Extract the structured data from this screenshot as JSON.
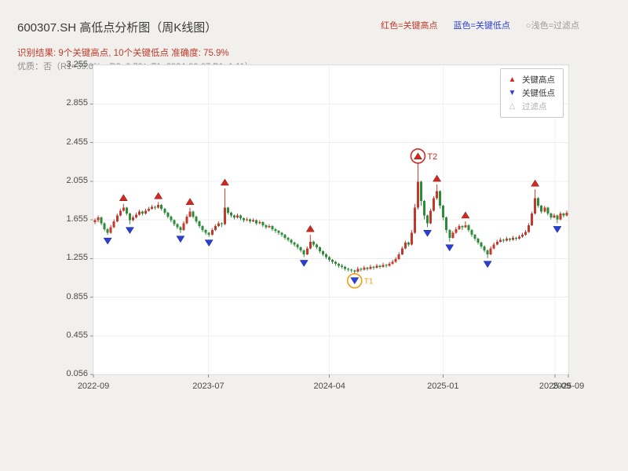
{
  "header": {
    "title": "600307.SH 高低点分析图（周K线图）",
    "result_line": "识别结果: 9个关键高点, 10个关键低点  准确度: 75.9%",
    "quality_line": "优质：否（R1=39.0%，R2=0.72；T1=2024-06-07 P1=1.11）",
    "top_legend": [
      {
        "label": "红色=关键高点",
        "color": "#c0392b"
      },
      {
        "label": "蓝色=关键低点",
        "color": "#2b3fd4"
      },
      {
        "label": "○浅色=过滤点",
        "color": "#9a9a9a"
      }
    ]
  },
  "legend_box": {
    "items": [
      {
        "label": "关键高点",
        "marker": "up-triangle",
        "color": "#d02a20"
      },
      {
        "label": "关键低点",
        "marker": "down-triangle",
        "color": "#2b3fd4"
      },
      {
        "label": "过滤点",
        "marker": "up-triangle-outline",
        "color": "#bbbbbb"
      }
    ]
  },
  "chart_data": {
    "type": "candlestick",
    "symbol": "600307.SH",
    "period": "weekly",
    "title": "600307.SH 高低点分析图（周K线图）",
    "y_range": [
      0.056,
      3.255
    ],
    "y_ticks": [
      3.255,
      2.855,
      2.455,
      2.055,
      1.655,
      1.255,
      0.855,
      0.455,
      0.056
    ],
    "x_ticks": [
      {
        "label": "2022-09",
        "pos": 0.0
      },
      {
        "label": "2023-07",
        "pos": 0.242
      },
      {
        "label": "2024-04",
        "pos": 0.497
      },
      {
        "label": "2025-01",
        "pos": 0.736
      },
      {
        "label": "2025-09",
        "pos": 0.972
      },
      {
        "label": "2025-09",
        "pos": 1.0
      }
    ],
    "grid": true,
    "up_color": "#c0392b",
    "down_color": "#2e8b3a",
    "high_marker_color": "#d02a20",
    "low_marker_color": "#2b3fd4",
    "candles": [
      [
        1.63,
        1.67,
        1.61,
        1.65
      ],
      [
        1.65,
        1.7,
        1.63,
        1.68
      ],
      [
        1.68,
        1.69,
        1.6,
        1.62
      ],
      [
        1.62,
        1.63,
        1.54,
        1.56
      ],
      [
        1.56,
        1.57,
        1.5,
        1.52
      ],
      [
        1.52,
        1.6,
        1.51,
        1.58
      ],
      [
        1.58,
        1.66,
        1.57,
        1.64
      ],
      [
        1.64,
        1.72,
        1.63,
        1.7
      ],
      [
        1.7,
        1.77,
        1.69,
        1.75
      ],
      [
        1.75,
        1.82,
        1.74,
        1.78
      ],
      [
        1.78,
        1.79,
        1.7,
        1.72
      ],
      [
        1.72,
        1.73,
        1.61,
        1.65
      ],
      [
        1.65,
        1.7,
        1.64,
        1.68
      ],
      [
        1.68,
        1.73,
        1.67,
        1.71
      ],
      [
        1.71,
        1.76,
        1.7,
        1.74
      ],
      [
        1.74,
        1.75,
        1.7,
        1.72
      ],
      [
        1.72,
        1.77,
        1.71,
        1.75
      ],
      [
        1.75,
        1.79,
        1.74,
        1.77
      ],
      [
        1.77,
        1.81,
        1.76,
        1.79
      ],
      [
        1.79,
        1.8,
        1.76,
        1.78
      ],
      [
        1.78,
        1.84,
        1.77,
        1.81
      ],
      [
        1.81,
        1.82,
        1.75,
        1.77
      ],
      [
        1.77,
        1.78,
        1.71,
        1.73
      ],
      [
        1.73,
        1.74,
        1.67,
        1.69
      ],
      [
        1.69,
        1.7,
        1.63,
        1.65
      ],
      [
        1.65,
        1.66,
        1.59,
        1.61
      ],
      [
        1.61,
        1.62,
        1.56,
        1.58
      ],
      [
        1.58,
        1.59,
        1.52,
        1.55
      ],
      [
        1.55,
        1.64,
        1.54,
        1.62
      ],
      [
        1.62,
        1.71,
        1.61,
        1.69
      ],
      [
        1.69,
        1.78,
        1.68,
        1.74
      ],
      [
        1.74,
        1.75,
        1.67,
        1.69
      ],
      [
        1.69,
        1.7,
        1.62,
        1.64
      ],
      [
        1.64,
        1.65,
        1.57,
        1.59
      ],
      [
        1.59,
        1.6,
        1.53,
        1.55
      ],
      [
        1.55,
        1.56,
        1.5,
        1.52
      ],
      [
        1.52,
        1.53,
        1.48,
        1.5
      ],
      [
        1.5,
        1.57,
        1.49,
        1.55
      ],
      [
        1.55,
        1.61,
        1.54,
        1.59
      ],
      [
        1.59,
        1.64,
        1.58,
        1.62
      ],
      [
        1.62,
        1.63,
        1.58,
        1.61
      ],
      [
        1.61,
        1.98,
        1.6,
        1.78
      ],
      [
        1.78,
        1.79,
        1.71,
        1.73
      ],
      [
        1.73,
        1.74,
        1.68,
        1.7
      ],
      [
        1.7,
        1.71,
        1.66,
        1.68
      ],
      [
        1.68,
        1.72,
        1.67,
        1.7
      ],
      [
        1.7,
        1.71,
        1.65,
        1.67
      ],
      [
        1.67,
        1.68,
        1.63,
        1.65
      ],
      [
        1.65,
        1.68,
        1.64,
        1.66
      ],
      [
        1.66,
        1.67,
        1.62,
        1.64
      ],
      [
        1.64,
        1.67,
        1.63,
        1.65
      ],
      [
        1.65,
        1.66,
        1.6,
        1.62
      ],
      [
        1.62,
        1.65,
        1.61,
        1.63
      ],
      [
        1.63,
        1.64,
        1.58,
        1.6
      ],
      [
        1.6,
        1.61,
        1.56,
        1.58
      ],
      [
        1.58,
        1.61,
        1.57,
        1.59
      ],
      [
        1.59,
        1.6,
        1.54,
        1.56
      ],
      [
        1.56,
        1.57,
        1.52,
        1.54
      ],
      [
        1.54,
        1.55,
        1.5,
        1.52
      ],
      [
        1.52,
        1.53,
        1.48,
        1.5
      ],
      [
        1.5,
        1.51,
        1.45,
        1.47
      ],
      [
        1.47,
        1.48,
        1.43,
        1.45
      ],
      [
        1.45,
        1.46,
        1.4,
        1.42
      ],
      [
        1.42,
        1.43,
        1.38,
        1.4
      ],
      [
        1.4,
        1.41,
        1.35,
        1.37
      ],
      [
        1.37,
        1.38,
        1.32,
        1.34
      ],
      [
        1.34,
        1.35,
        1.27,
        1.3
      ],
      [
        1.3,
        1.38,
        1.29,
        1.36
      ],
      [
        1.36,
        1.5,
        1.35,
        1.43
      ],
      [
        1.43,
        1.44,
        1.38,
        1.4
      ],
      [
        1.4,
        1.41,
        1.35,
        1.37
      ],
      [
        1.37,
        1.38,
        1.31,
        1.33
      ],
      [
        1.33,
        1.34,
        1.28,
        1.3
      ],
      [
        1.3,
        1.31,
        1.25,
        1.27
      ],
      [
        1.27,
        1.28,
        1.22,
        1.24
      ],
      [
        1.24,
        1.25,
        1.2,
        1.22
      ],
      [
        1.22,
        1.23,
        1.18,
        1.2
      ],
      [
        1.2,
        1.21,
        1.16,
        1.18
      ],
      [
        1.18,
        1.2,
        1.15,
        1.17
      ],
      [
        1.17,
        1.18,
        1.13,
        1.15
      ],
      [
        1.15,
        1.16,
        1.12,
        1.14
      ],
      [
        1.14,
        1.15,
        1.11,
        1.13
      ],
      [
        1.13,
        1.14,
        1.09,
        1.12
      ],
      [
        1.12,
        1.17,
        1.11,
        1.15
      ],
      [
        1.15,
        1.16,
        1.12,
        1.14
      ],
      [
        1.14,
        1.18,
        1.13,
        1.16
      ],
      [
        1.16,
        1.17,
        1.13,
        1.15
      ],
      [
        1.15,
        1.19,
        1.14,
        1.17
      ],
      [
        1.17,
        1.18,
        1.14,
        1.16
      ],
      [
        1.16,
        1.2,
        1.15,
        1.18
      ],
      [
        1.18,
        1.19,
        1.15,
        1.17
      ],
      [
        1.17,
        1.21,
        1.16,
        1.19
      ],
      [
        1.19,
        1.2,
        1.16,
        1.18
      ],
      [
        1.18,
        1.22,
        1.17,
        1.2
      ],
      [
        1.2,
        1.24,
        1.19,
        1.22
      ],
      [
        1.22,
        1.27,
        1.21,
        1.25
      ],
      [
        1.25,
        1.32,
        1.24,
        1.3
      ],
      [
        1.3,
        1.38,
        1.29,
        1.36
      ],
      [
        1.36,
        1.44,
        1.35,
        1.42
      ],
      [
        1.42,
        1.43,
        1.38,
        1.4
      ],
      [
        1.4,
        1.55,
        1.39,
        1.52
      ],
      [
        1.52,
        1.82,
        1.51,
        1.78
      ],
      [
        1.78,
        2.25,
        1.76,
        2.05
      ],
      [
        2.05,
        2.06,
        1.8,
        1.85
      ],
      [
        1.85,
        1.86,
        1.66,
        1.7
      ],
      [
        1.7,
        1.71,
        1.58,
        1.62
      ],
      [
        1.62,
        1.77,
        1.61,
        1.75
      ],
      [
        1.75,
        1.9,
        1.74,
        1.88
      ],
      [
        1.88,
        2.02,
        1.86,
        1.95
      ],
      [
        1.95,
        1.96,
        1.77,
        1.8
      ],
      [
        1.8,
        1.81,
        1.65,
        1.68
      ],
      [
        1.68,
        1.69,
        1.52,
        1.55
      ],
      [
        1.55,
        1.56,
        1.43,
        1.47
      ],
      [
        1.47,
        1.54,
        1.46,
        1.52
      ],
      [
        1.52,
        1.58,
        1.51,
        1.56
      ],
      [
        1.56,
        1.61,
        1.55,
        1.59
      ],
      [
        1.59,
        1.6,
        1.55,
        1.58
      ],
      [
        1.58,
        1.64,
        1.57,
        1.6
      ],
      [
        1.6,
        1.61,
        1.53,
        1.55
      ],
      [
        1.55,
        1.56,
        1.48,
        1.5
      ],
      [
        1.5,
        1.51,
        1.44,
        1.46
      ],
      [
        1.46,
        1.47,
        1.4,
        1.42
      ],
      [
        1.42,
        1.43,
        1.36,
        1.38
      ],
      [
        1.38,
        1.39,
        1.32,
        1.34
      ],
      [
        1.34,
        1.35,
        1.26,
        1.3
      ],
      [
        1.3,
        1.38,
        1.29,
        1.36
      ],
      [
        1.36,
        1.42,
        1.35,
        1.4
      ],
      [
        1.4,
        1.45,
        1.39,
        1.43
      ],
      [
        1.43,
        1.47,
        1.42,
        1.45
      ],
      [
        1.45,
        1.46,
        1.42,
        1.44
      ],
      [
        1.44,
        1.48,
        1.43,
        1.46
      ],
      [
        1.46,
        1.47,
        1.43,
        1.45
      ],
      [
        1.45,
        1.49,
        1.44,
        1.47
      ],
      [
        1.47,
        1.48,
        1.44,
        1.46
      ],
      [
        1.46,
        1.5,
        1.45,
        1.48
      ],
      [
        1.48,
        1.52,
        1.47,
        1.5
      ],
      [
        1.5,
        1.55,
        1.49,
        1.53
      ],
      [
        1.53,
        1.62,
        1.52,
        1.6
      ],
      [
        1.6,
        1.74,
        1.59,
        1.72
      ],
      [
        1.72,
        1.97,
        1.71,
        1.88
      ],
      [
        1.88,
        1.89,
        1.78,
        1.8
      ],
      [
        1.8,
        1.81,
        1.72,
        1.74
      ],
      [
        1.74,
        1.8,
        1.73,
        1.78
      ],
      [
        1.78,
        1.79,
        1.7,
        1.72
      ],
      [
        1.72,
        1.73,
        1.66,
        1.68
      ],
      [
        1.68,
        1.72,
        1.67,
        1.7
      ],
      [
        1.7,
        1.71,
        1.62,
        1.66
      ],
      [
        1.66,
        1.74,
        1.65,
        1.72
      ],
      [
        1.72,
        1.73,
        1.68,
        1.7
      ],
      [
        1.7,
        1.75,
        1.69,
        1.73
      ]
    ],
    "key_highs": [
      {
        "index": 9,
        "price": 1.82
      },
      {
        "index": 20,
        "price": 1.84
      },
      {
        "index": 30,
        "price": 1.78
      },
      {
        "index": 41,
        "price": 1.98
      },
      {
        "index": 68,
        "price": 1.5
      },
      {
        "index": 102,
        "price": 2.25
      },
      {
        "index": 108,
        "price": 2.02
      },
      {
        "index": 117,
        "price": 1.64
      },
      {
        "index": 139,
        "price": 1.97
      }
    ],
    "key_lows": [
      {
        "index": 4,
        "price": 1.5
      },
      {
        "index": 11,
        "price": 1.61
      },
      {
        "index": 27,
        "price": 1.52
      },
      {
        "index": 36,
        "price": 1.48
      },
      {
        "index": 66,
        "price": 1.27
      },
      {
        "index": 82,
        "price": 1.09
      },
      {
        "index": 105,
        "price": 1.58
      },
      {
        "index": 112,
        "price": 1.43
      },
      {
        "index": 124,
        "price": 1.26
      },
      {
        "index": 146,
        "price": 1.62
      }
    ],
    "annotations": [
      {
        "label": "T2",
        "index": 102,
        "target": "high",
        "color": "#d02a20"
      },
      {
        "label": "T1",
        "index": 82,
        "target": "low",
        "color": "#f39c12"
      }
    ]
  }
}
